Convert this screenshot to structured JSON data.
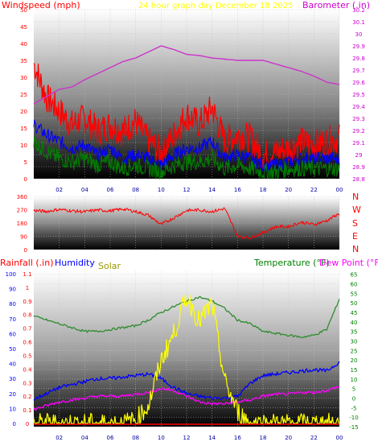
{
  "header": {
    "windspeed_title": "Windspeed (mph)",
    "graph_title": "24 hour graph day   December 18 2025",
    "barometer_title": "Barometer (.in)"
  },
  "direction_labels": [
    "N",
    "W",
    "S",
    "E",
    "N"
  ],
  "bottom_header": {
    "rainfall_title": "Rainfall (.in)",
    "humidity_title": "Humidity",
    "solar_title": "Solar",
    "temperature_title": "Temperature (°F)",
    "dewpoint_title": "Dew Point (°F)"
  },
  "colors": {
    "wind_gust": "#ff0000",
    "wind_avg": "#0000ff",
    "wind_low": "#008000",
    "barometer": "#cc33cc",
    "direction": "#ff0000",
    "temperature": "#2e8b2e",
    "dewpoint": "#ff00ff",
    "humidity": "#0000ff",
    "solar": "#ffff00",
    "rainfall": "#ff0000",
    "title_yellow": "#ffff00",
    "barometer_label": "#cc00cc",
    "temp_label": "#008000"
  },
  "chart_data": [
    {
      "type": "line",
      "name": "wind-barometer",
      "x_ticks": [
        "02",
        "04",
        "06",
        "08",
        "10",
        "12",
        "14",
        "16",
        "18",
        "20",
        "22",
        "00"
      ],
      "y_left_ticks": [
        0,
        5,
        10,
        15,
        20,
        25,
        30,
        35,
        40,
        45,
        50
      ],
      "ylim_left": [
        0,
        50
      ],
      "y_right_ticks": [
        "28.8",
        "28.9",
        "29",
        "29.1",
        "29.2",
        "29.3",
        "29.4",
        "29.5",
        "29.6",
        "29.7",
        "29.8",
        "29.9",
        "30",
        "30.1",
        "30.2"
      ],
      "ylim_right": [
        28.8,
        30.2
      ],
      "hours": [
        0,
        1,
        2,
        3,
        4,
        5,
        6,
        7,
        8,
        9,
        10,
        11,
        12,
        13,
        14,
        15,
        16,
        17,
        18,
        19,
        20,
        21,
        22,
        23,
        24
      ],
      "series": [
        {
          "key": "gust",
          "values": [
            34,
            24,
            20,
            16,
            18,
            14,
            16,
            14,
            17,
            11,
            8,
            13,
            19,
            16,
            21,
            11,
            13,
            12,
            7,
            8,
            9,
            11,
            10,
            11,
            12
          ]
        },
        {
          "key": "average",
          "values": [
            16,
            13,
            11,
            9,
            10,
            7,
            9,
            6,
            7,
            6,
            4,
            7,
            9,
            9,
            11,
            6,
            7,
            6,
            4,
            4,
            5,
            6,
            6,
            6,
            6
          ]
        },
        {
          "key": "low",
          "values": [
            11,
            8,
            6,
            5,
            6,
            4,
            5,
            3,
            4,
            3,
            2,
            4,
            5,
            5,
            6,
            3,
            4,
            3,
            2,
            2,
            3,
            3,
            3,
            3,
            3
          ]
        },
        {
          "key": "barometer",
          "values": [
            29.42,
            29.48,
            29.54,
            29.56,
            29.62,
            29.67,
            29.72,
            29.77,
            29.8,
            29.85,
            29.9,
            29.87,
            29.83,
            29.82,
            29.8,
            29.79,
            29.78,
            29.78,
            29.78,
            29.75,
            29.72,
            29.69,
            29.65,
            29.6,
            29.58
          ]
        }
      ]
    },
    {
      "type": "line",
      "name": "wind-direction",
      "y_ticks": [
        0,
        90,
        180,
        270,
        360
      ],
      "ylim": [
        0,
        360
      ],
      "hours": [
        0,
        1,
        2,
        3,
        4,
        5,
        6,
        7,
        8,
        9,
        10,
        11,
        12,
        13,
        14,
        15,
        16,
        17,
        18,
        19,
        20,
        21,
        22,
        23,
        24
      ],
      "values": [
        265,
        258,
        272,
        262,
        256,
        268,
        262,
        275,
        258,
        232,
        170,
        215,
        265,
        268,
        258,
        278,
        90,
        80,
        115,
        155,
        155,
        185,
        170,
        195,
        245
      ]
    },
    {
      "type": "line",
      "name": "weather",
      "x_ticks": [
        "02",
        "04",
        "06",
        "08",
        "10",
        "12",
        "14",
        "16",
        "18",
        "20",
        "22",
        "00"
      ],
      "humidity_ticks": [
        0,
        10,
        20,
        30,
        40,
        50,
        60,
        70,
        80,
        90,
        100
      ],
      "rainfall_ticks": [
        "0",
        "0.1",
        "0.2",
        "0.3",
        "0.4",
        "0.5",
        "0.6",
        "0.7",
        "0.8",
        "0.9",
        "1",
        "1.1"
      ],
      "temp_ticks": [
        -15,
        -10,
        -5,
        0,
        5,
        10,
        15,
        20,
        25,
        30,
        35,
        40,
        45,
        50,
        55,
        60,
        65
      ],
      "ylim_temp": [
        -15,
        67
      ],
      "hours": [
        0,
        1,
        2,
        3,
        4,
        5,
        6,
        7,
        8,
        9,
        10,
        11,
        12,
        13,
        14,
        15,
        16,
        17,
        18,
        19,
        20,
        21,
        22,
        23,
        24
      ],
      "series": [
        {
          "key": "temperature",
          "values": [
            43,
            41,
            39,
            37,
            35,
            35,
            36,
            37,
            38,
            41,
            45,
            48,
            51,
            53,
            51,
            47,
            41,
            39,
            35,
            34,
            33,
            32,
            33,
            36,
            52
          ]
        },
        {
          "key": "dewpoint",
          "values": [
            -6,
            -4,
            -2,
            -1,
            0,
            1,
            1,
            1,
            2,
            3,
            5,
            4,
            1,
            -2,
            -3,
            -3,
            -2,
            -1,
            1,
            2,
            2,
            3,
            3,
            4,
            6
          ]
        },
        {
          "key": "humidity",
          "values": [
            16,
            20,
            24,
            26,
            28,
            30,
            30,
            31,
            32,
            33,
            30,
            24,
            20,
            18,
            17,
            17,
            18,
            27,
            32,
            33,
            34,
            35,
            36,
            35,
            41
          ]
        },
        {
          "key": "solar",
          "values": [
            0,
            0,
            0,
            0,
            0,
            0,
            0,
            0,
            2,
            12,
            42,
            60,
            85,
            68,
            80,
            28,
            8,
            0,
            0,
            0,
            0,
            0,
            0,
            0,
            0
          ]
        },
        {
          "key": "rainfall",
          "values": [
            0,
            0,
            0,
            0,
            0,
            0,
            0,
            0,
            0,
            0,
            0,
            0,
            0,
            0,
            0,
            0,
            0,
            0,
            0,
            0,
            0,
            0,
            0,
            0,
            0
          ]
        }
      ]
    }
  ]
}
